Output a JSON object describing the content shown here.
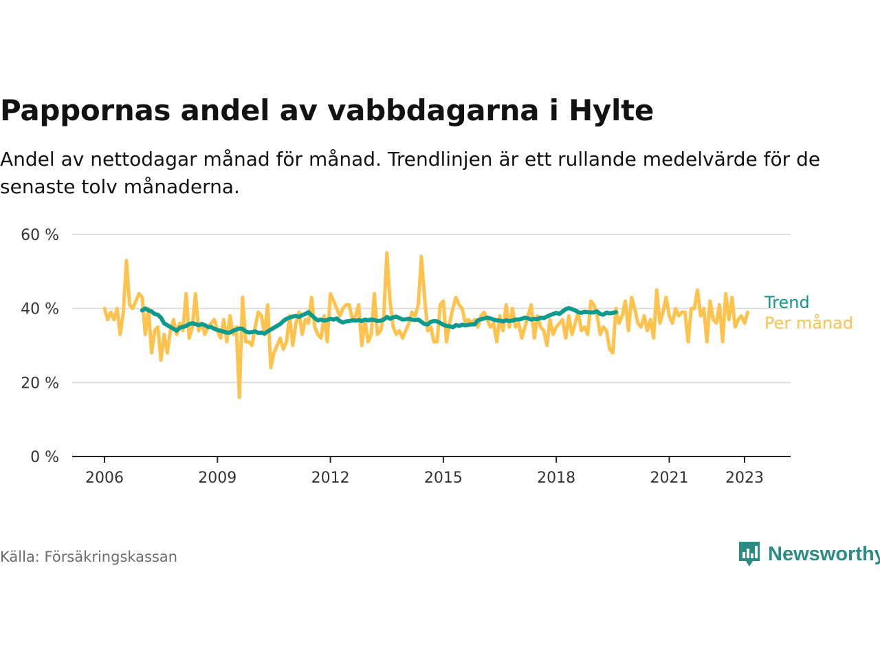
{
  "header": {
    "title": "Pappornas andel av vabbdagarna i Hylte",
    "subtitle": "Andel av nettodagar månad för månad. Trendlinjen är ett rullande medelvärde för de senaste tolv månaderna."
  },
  "footer": {
    "source": "Källa: Försäkringskassan",
    "brand": "Newsworthy",
    "brand_icon": "bar-chart-speech-bubble-icon"
  },
  "colors": {
    "trend": "#0e9a8d",
    "monthly": "#ffc34d",
    "grid": "#dddddd",
    "axis": "#222222",
    "brand": "#2a8c82"
  },
  "chart_data": {
    "type": "line",
    "title": "Pappornas andel av vabbdagarna i Hylte",
    "xlabel": "",
    "ylabel": "",
    "ylim": [
      0,
      60
    ],
    "yticks": [
      0,
      20,
      40,
      60
    ],
    "ytick_labels": [
      "0 %",
      "20 %",
      "40 %",
      "60 %"
    ],
    "xlim": [
      2006,
      2023.58
    ],
    "xticks": [
      2006,
      2009,
      2012,
      2015,
      2018,
      2021,
      2023
    ],
    "xtick_labels": [
      "2006",
      "2009",
      "2012",
      "2015",
      "2018",
      "2021",
      "2023"
    ],
    "grid": true,
    "legend": "inline-right",
    "series": [
      {
        "name": "Per månad",
        "start_year": 2006,
        "frequency": "monthly",
        "values": [
          40,
          37,
          39,
          37,
          40,
          33,
          39,
          53,
          41,
          40,
          42,
          44,
          43,
          33,
          40,
          28,
          34,
          35,
          26,
          33,
          28,
          34,
          37,
          33,
          36,
          34,
          44,
          32,
          35,
          44,
          34,
          36,
          33,
          35,
          36,
          37,
          34,
          32,
          37,
          31,
          38,
          33,
          35,
          16,
          43,
          31,
          31,
          30,
          35,
          39,
          38,
          33,
          41,
          24,
          28,
          30,
          32,
          29,
          31,
          38,
          30,
          36,
          39,
          33,
          37,
          36,
          43,
          35,
          33,
          32,
          38,
          31,
          44,
          42,
          40,
          38,
          40,
          41,
          41,
          37,
          38,
          41,
          30,
          37,
          31,
          33,
          44,
          33,
          34,
          38,
          55,
          42,
          35,
          33,
          34,
          32,
          34,
          36,
          39,
          38,
          41,
          54,
          43,
          34,
          35,
          31,
          31,
          41,
          42,
          31,
          36,
          40,
          43,
          41,
          40,
          36,
          37,
          36,
          37,
          35,
          38,
          39,
          37,
          35,
          36,
          31,
          38,
          34,
          41,
          35,
          40,
          35,
          36,
          32,
          35,
          38,
          41,
          32,
          38,
          35,
          34,
          30,
          37,
          33,
          35,
          36,
          37,
          32,
          38,
          33,
          36,
          39,
          34,
          35,
          33,
          42,
          41,
          38,
          33,
          35,
          34,
          29,
          28,
          40,
          36,
          38,
          42,
          34,
          43,
          40,
          36,
          35,
          38,
          34,
          37,
          32,
          45,
          36,
          39,
          43,
          38,
          36,
          40,
          38,
          39,
          39,
          31,
          40,
          40,
          45,
          38,
          40,
          31,
          42,
          37,
          36,
          41,
          31,
          44,
          37,
          43,
          35,
          37,
          38,
          36,
          39
        ]
      },
      {
        "name": "Trend",
        "start_year": 2007,
        "frequency": "monthly",
        "values": [
          39.5,
          40,
          39.5,
          39.2,
          38.5,
          38.3,
          37.5,
          36,
          35.5,
          35,
          34.5,
          34,
          34.8,
          35,
          35.3,
          35.8,
          36,
          35.8,
          35.5,
          35.8,
          35.5,
          35,
          35,
          34.5,
          34.2,
          34,
          33.7,
          33.5,
          33.5,
          34,
          34.3,
          34.6,
          34.5,
          33.8,
          33.5,
          33.6,
          33.8,
          33.4,
          33.5,
          33.2,
          33.8,
          34.3,
          34.8,
          35.3,
          35.8,
          36.6,
          37.2,
          37.5,
          37.8,
          38,
          37.7,
          38.2,
          38.5,
          39,
          38.2,
          37.4,
          36.8,
          37,
          36.7,
          36.9,
          37.2,
          37,
          37.3,
          36.6,
          36.2,
          36.5,
          36.6,
          36.8,
          36.7,
          36.9,
          36.6,
          37,
          36.8,
          37,
          36.9,
          36.6,
          36.7,
          37,
          37.7,
          37.2,
          37.6,
          37.8,
          37.4,
          37,
          37.1,
          37.2,
          37,
          36.9,
          37,
          36.4,
          35.8,
          35.7,
          36.4,
          36.6,
          36.5,
          36.1,
          35.6,
          35.3,
          35.2,
          34.9,
          35.5,
          35.3,
          35.6,
          35.4,
          35.6,
          35.7,
          35.7,
          36.8,
          37.1,
          37.3,
          37.5,
          37.3,
          37,
          36.8,
          36.7,
          36.5,
          36.8,
          36.6,
          36.7,
          37,
          37,
          37.2,
          37.5,
          37.3,
          37,
          37.2,
          37.1,
          37.5,
          37.4,
          37.8,
          38.2,
          38.5,
          38.8,
          38.5,
          39.2,
          39.8,
          40.1,
          39.8,
          39.5,
          39,
          38.8,
          39.1,
          39,
          38.9,
          39,
          39.2,
          38.5,
          38.3,
          38.9,
          38.7,
          38.8,
          39
        ]
      }
    ]
  }
}
